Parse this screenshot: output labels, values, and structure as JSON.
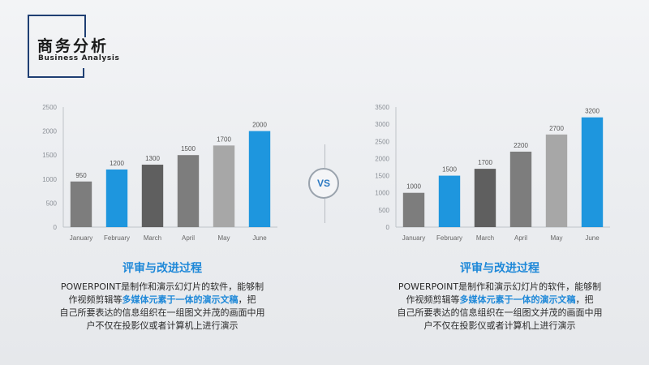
{
  "header": {
    "title_cn": "商务分析",
    "title_en": "Business Analysis"
  },
  "vs_label": "VS",
  "colors": {
    "accent": "#1e96de",
    "gray_dark": "#5f5f5f",
    "gray_mid": "#7d7d7d",
    "gray_light": "#a7a7a7",
    "title_border": "#1f3f73"
  },
  "chart_data": [
    {
      "type": "bar",
      "categories": [
        "January",
        "February",
        "March",
        "April",
        "May",
        "June"
      ],
      "values": [
        950,
        1200,
        1300,
        1500,
        1700,
        2000
      ],
      "value_labels": [
        "950",
        "1200",
        "1300",
        "1500",
        "1700",
        "2000"
      ],
      "bar_colors": [
        "#7d7d7d",
        "#1e96de",
        "#5f5f5f",
        "#7d7d7d",
        "#a7a7a7",
        "#1e96de"
      ],
      "y_ticks": [
        "0",
        "500",
        "1000",
        "1500",
        "2000",
        "2500"
      ],
      "ylim": [
        0,
        2500
      ],
      "grid": false,
      "legend": "none"
    },
    {
      "type": "bar",
      "categories": [
        "January",
        "February",
        "March",
        "April",
        "May",
        "June"
      ],
      "values": [
        1000,
        1500,
        1700,
        2200,
        2700,
        3200
      ],
      "value_labels": [
        "1000",
        "1500",
        "1700",
        "2200",
        "2700",
        "3200"
      ],
      "bar_colors": [
        "#7d7d7d",
        "#1e96de",
        "#5f5f5f",
        "#7d7d7d",
        "#a7a7a7",
        "#1e96de"
      ],
      "y_ticks": [
        "0",
        "500",
        "1000",
        "1500",
        "2000",
        "2500",
        "3000",
        "3500"
      ],
      "ylim": [
        0,
        3500
      ],
      "grid": false,
      "legend": "none"
    }
  ],
  "left_text": {
    "heading": "评审与改进过程",
    "line1": "POWERPOINT是制作和演示幻灯片的软件，能够制",
    "line2_pre": "作视频剪辑等",
    "line2_hl": "多媒体元素于一体的演示文稿",
    "line2_post": "，把",
    "line3": "自己所要表达的信息组织在一组图文并茂的画面中用",
    "line4": "户不仅在投影仪或者计算机上进行演示"
  },
  "right_text": {
    "heading": "评审与改进过程",
    "line1": "POWERPOINT是制作和演示幻灯片的软件，能够制",
    "line2_pre": "作视频剪辑等",
    "line2_hl": "多媒体元素于一体的演示文稿",
    "line2_post": "，把",
    "line3": "自己所要表达的信息组织在一组图文并茂的画面中用",
    "line4": "户不仅在投影仪或者计算机上进行演示"
  }
}
